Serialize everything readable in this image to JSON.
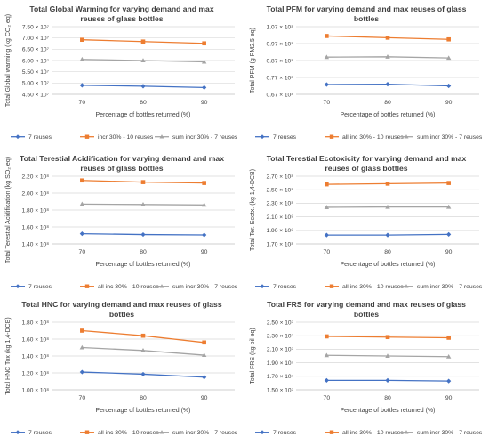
{
  "colors": {
    "seven_reuses": "#4472C4",
    "ten_reuses": "#ED7D31",
    "sum_seven": "#A5A5A5",
    "grid": "#D9D9D9",
    "text": "#404040"
  },
  "chart_data": [
    {
      "type": "line",
      "title_lines": [
        "Total Global Warming for varying demand and max",
        "reuses of glass bottles"
      ],
      "xlabel": "Percentage of bottles returned (%)",
      "ylabel": "Total Global warming (kg CO₂ eq)",
      "categories": [
        "70",
        "80",
        "90"
      ],
      "y_ticks": [
        "4.50 × 10⁷",
        "5.00 × 10⁷",
        "5.50 × 10⁷",
        "6.00 × 10⁷",
        "6.50 × 10⁷",
        "7.00 × 10⁷",
        "7.50 × 10⁷"
      ],
      "ylim": [
        45000000,
        75000000
      ],
      "series": [
        {
          "name": "7 reuses",
          "values": [
            49000000,
            48600000,
            48000000
          ]
        },
        {
          "name": "incr 30% - 10 reuses",
          "values": [
            69200000,
            68400000,
            67600000
          ]
        },
        {
          "name": "sum incr 30% - 7 reuses",
          "values": [
            60500000,
            60000000,
            59400000
          ]
        }
      ],
      "grid": true,
      "legend": "bottom"
    },
    {
      "type": "line",
      "title_lines": [
        "Total PFM for varying demand and max reuses of glass",
        "bottles"
      ],
      "xlabel": "Percentage of bottles returned (%)",
      "ylabel": "Total PFM (g PM2.5 eq)",
      "categories": [
        "70",
        "80",
        "90"
      ],
      "y_ticks": [
        "0.67 × 10⁸",
        "0.77 × 10⁸",
        "0.87 × 10⁸",
        "0.97 × 10⁸",
        "1.07 × 10⁸"
      ],
      "ylim": [
        67000000,
        107000000
      ],
      "series": [
        {
          "name": "7 reuses",
          "values": [
            72800000,
            73000000,
            72000000
          ]
        },
        {
          "name": "all inc 30% - 10 reuses",
          "values": [
            101500000,
            100500000,
            99500000
          ]
        },
        {
          "name": "sum incr 30% - 7 reuses",
          "values": [
            89000000,
            89200000,
            88500000
          ]
        }
      ],
      "grid": true,
      "legend": "bottom"
    },
    {
      "type": "line",
      "title_lines": [
        "Total Terestial Acidification for varying demand and max",
        "reuses of glass bottles"
      ],
      "xlabel": "Percentage of bottles returned (%)",
      "ylabel": "Total Terestial Acidification (kg SO₂ eq)",
      "categories": [
        "70",
        "80",
        "90"
      ],
      "y_ticks": [
        "1.40 × 10⁸",
        "1.60 × 10⁸",
        "1.80 × 10⁸",
        "2.00 × 10⁸",
        "2.20 × 10⁸"
      ],
      "ylim": [
        140000000,
        220000000
      ],
      "series": [
        {
          "name": "7 reuses",
          "values": [
            152000000,
            151000000,
            150500000
          ]
        },
        {
          "name": "all inc 30% - 10 reuses",
          "values": [
            215000000,
            213000000,
            212000000
          ]
        },
        {
          "name": "sum incr 30% - 7 reuses",
          "values": [
            187000000,
            186500000,
            186000000
          ]
        }
      ],
      "grid": true,
      "legend": "bottom"
    },
    {
      "type": "line",
      "title_lines": [
        "Total Terestial Ecotoxicity for varying demand and max",
        "reuses of glass bottles"
      ],
      "xlabel": "Percentage of bottles returned (%)",
      "ylabel": "Total Ter. Ecotx. (kg 1,4-DCB)",
      "categories": [
        "70",
        "80",
        "90"
      ],
      "y_ticks": [
        "1.70 × 10⁸",
        "1.90 × 10⁸",
        "2.10 × 10⁸",
        "2.30 × 10⁸",
        "2.50 × 10⁸",
        "2.70 × 10⁸"
      ],
      "ylim": [
        170000000,
        270000000
      ],
      "series": [
        {
          "name": "7 reuses",
          "values": [
            183000000,
            183000000,
            184000000
          ]
        },
        {
          "name": "all inc 30% - 10 reuses",
          "values": [
            258000000,
            259000000,
            260000000
          ]
        },
        {
          "name": "sum incr 30% - 7 reuses",
          "values": [
            224000000,
            224500000,
            224500000
          ]
        }
      ],
      "grid": true,
      "legend": "bottom"
    },
    {
      "type": "line",
      "title_lines": [
        "Total HNC for varying demand and max reuses of glass",
        "bottles"
      ],
      "xlabel": "Percentage of bottles returned (%)",
      "ylabel": "Total HNC Tox (kg 1,4-DCB)",
      "categories": [
        "70",
        "80",
        "90"
      ],
      "y_ticks": [
        "1.00 × 10⁸",
        "1.20 × 10⁸",
        "1.40 × 10⁸",
        "1.60 × 10⁸",
        "1.80 × 10⁸"
      ],
      "ylim": [
        100000000,
        180000000
      ],
      "series": [
        {
          "name": "7 reuses",
          "values": [
            121000000,
            118500000,
            115000000
          ]
        },
        {
          "name": "all inc 30% - 10 reuses",
          "values": [
            170000000,
            164000000,
            156000000
          ]
        },
        {
          "name": "sum incr 30% - 7 reuses",
          "values": [
            150000000,
            146500000,
            141000000
          ]
        }
      ],
      "grid": true,
      "legend": "bottom"
    },
    {
      "type": "line",
      "title_lines": [
        "Total FRS for varying demand and max reuses of glass",
        "bottles"
      ],
      "xlabel": "Percentage of bottles returned (%)",
      "ylabel": "Total FRS (kg oil eq)",
      "categories": [
        "70",
        "80",
        "90"
      ],
      "y_ticks": [
        "1.50 × 10⁷",
        "1.70 × 10⁷",
        "1.90 × 10⁷",
        "2.10 × 10⁷",
        "2.30 × 10⁷",
        "2.50 × 10⁷"
      ],
      "ylim": [
        15000000,
        25000000
      ],
      "series": [
        {
          "name": "7 reuses",
          "values": [
            16400000,
            16400000,
            16300000
          ]
        },
        {
          "name": "all inc 30% - 10 reuses",
          "values": [
            22900000,
            22800000,
            22700000
          ]
        },
        {
          "name": "sum incr 30% - 7 reuses",
          "values": [
            20100000,
            20000000,
            19900000
          ]
        }
      ],
      "grid": true,
      "legend": "bottom"
    }
  ]
}
